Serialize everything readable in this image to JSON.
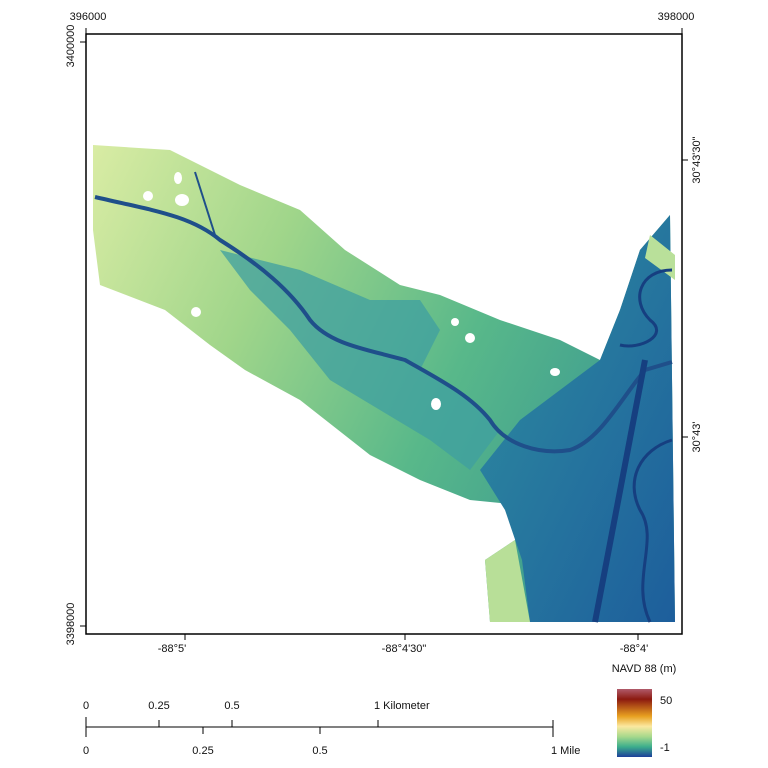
{
  "map": {
    "top_labels": [
      "396000",
      "398000"
    ],
    "left_labels": [
      "3400000",
      "3398000"
    ],
    "right_labels": [
      "30°43'30\"",
      "30°43'"
    ],
    "bottom_labels": [
      "-88°5'",
      "-88°4'30\"",
      "-88°4'"
    ],
    "legend": {
      "title": "NAVD 88 (m)",
      "max": "50",
      "min": "-1"
    },
    "scale_bar": {
      "km": [
        "0",
        "0.25",
        "0.5",
        "1 Kilometer"
      ],
      "mile": [
        "0",
        "0.25",
        "0.5",
        "1 Mile"
      ]
    }
  }
}
